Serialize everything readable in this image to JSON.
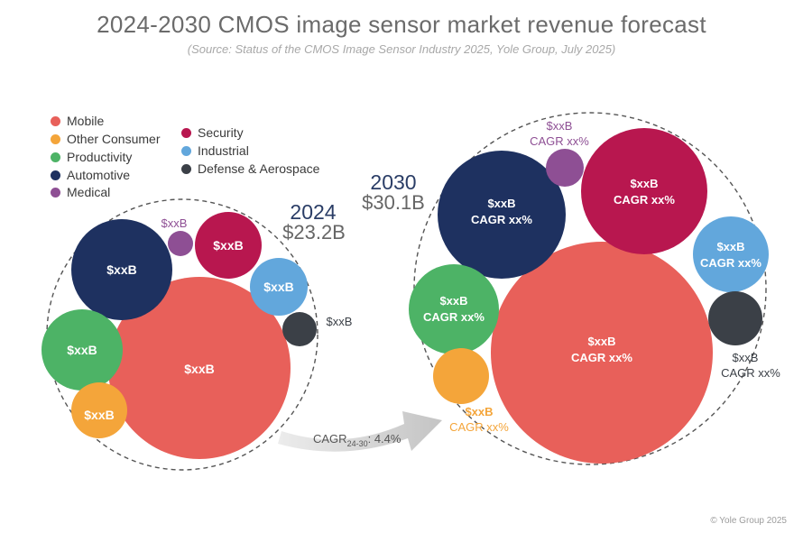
{
  "title": "2024-2030 CMOS image sensor market revenue forecast",
  "subtitle": "(Source: Status of the CMOS Image Sensor Industry 2025, Yole Group, July 2025)",
  "copyright": "© Yole Group 2025",
  "colors": {
    "mobile": "#e8605a",
    "other_consumer": "#f4a53a",
    "productivity": "#4db366",
    "automotive": "#1e3160",
    "medical": "#8e4f94",
    "security": "#b8174f",
    "industrial": "#62a7dc",
    "defense": "#3b4047"
  },
  "legend": [
    {
      "key": "mobile",
      "label": "Mobile",
      "color": "#e8605a"
    },
    {
      "key": "other_consumer",
      "label": "Other Consumer",
      "color": "#f4a53a"
    },
    {
      "key": "productivity",
      "label": "Productivity",
      "color": "#4db366"
    },
    {
      "key": "automotive",
      "label": "Automotive",
      "color": "#1e3160"
    },
    {
      "key": "medical",
      "label": "Medical",
      "color": "#8e4f94"
    },
    {
      "key": "security",
      "label": "Security",
      "color": "#b8174f"
    },
    {
      "key": "industrial",
      "label": "Industrial",
      "color": "#62a7dc"
    },
    {
      "key": "defense",
      "label": "Defense & Aerospace",
      "color": "#3b4047"
    }
  ],
  "chart_data": {
    "type": "bubble",
    "title": "2024-2030 CMOS image sensor market revenue forecast",
    "groups": [
      {
        "year": "2024",
        "total_label": "$23.2B",
        "total_value": 23.2,
        "bubbles": [
          {
            "segment": "Mobile",
            "label": "$xxB"
          },
          {
            "segment": "Automotive",
            "label": "$xxB"
          },
          {
            "segment": "Productivity",
            "label": "$xxB"
          },
          {
            "segment": "Other Consumer",
            "label": "$xxB"
          },
          {
            "segment": "Security",
            "label": "$xxB"
          },
          {
            "segment": "Industrial",
            "label": "$xxB"
          },
          {
            "segment": "Medical",
            "label": "$xxB"
          },
          {
            "segment": "Defense & Aerospace",
            "label": "$xxB"
          }
        ]
      },
      {
        "year": "2030",
        "total_label": "$30.1B",
        "total_value": 30.1,
        "bubbles": [
          {
            "segment": "Mobile",
            "label": "$xxB",
            "cagr": "CAGR xx%"
          },
          {
            "segment": "Automotive",
            "label": "$xxB",
            "cagr": "CAGR xx%"
          },
          {
            "segment": "Security",
            "label": "$xxB",
            "cagr": "CAGR xx%"
          },
          {
            "segment": "Productivity",
            "label": "$xxB",
            "cagr": "CAGR xx%"
          },
          {
            "segment": "Industrial",
            "label": "$xxB",
            "cagr": "CAGR xx%"
          },
          {
            "segment": "Other Consumer",
            "label": "$xxB",
            "cagr": "CAGR xx%"
          },
          {
            "segment": "Medical",
            "label": "$xxB",
            "cagr": "CAGR xx%"
          },
          {
            "segment": "Defense & Aerospace",
            "label": "$xxB",
            "cagr": "CAGR xx%"
          }
        ]
      }
    ],
    "arrow_label": {
      "prefix": "CAGR",
      "sub": "24-30",
      "suffix": ": 4.4%"
    }
  }
}
